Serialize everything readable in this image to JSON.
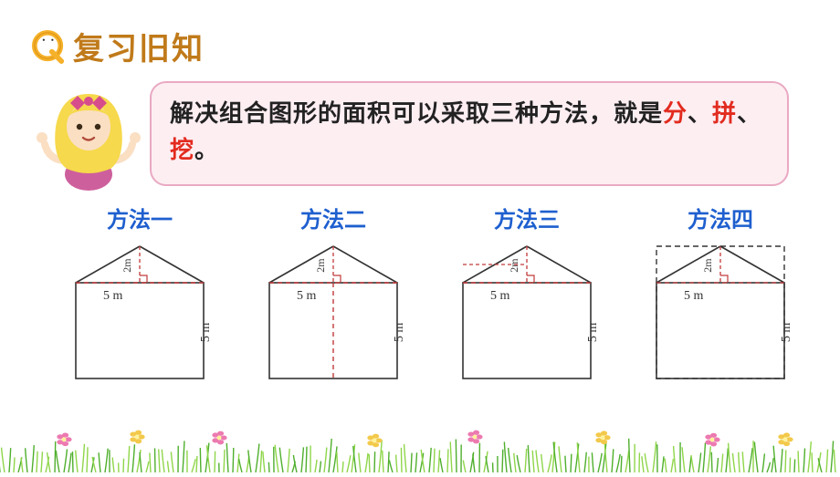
{
  "colors": {
    "title": "#c07a1a",
    "q_body": "#f6b12a",
    "q_outline": "#d98f12",
    "q_eye": "#ffffff",
    "bubble_border": "#e9a9c2",
    "bubble_fill": "#fdeef2",
    "text_black": "#222222",
    "highlight_red": "#e22b1f",
    "method_label": "#1e5fcf",
    "shape_line": "#333333",
    "dashed_red": "#c23a3a",
    "girl_hair": "#f6d94c",
    "girl_skin": "#fbdfc3",
    "girl_dress": "#ce5f9d",
    "girl_bow": "#d74d8c",
    "flower_pink": "#ec7ab0",
    "flower_yellow": "#f3c94b",
    "grass_light": "#8fd64a",
    "grass_dark": "#4faf2d"
  },
  "header": {
    "title": "复习旧知"
  },
  "bubble": {
    "prefix": "解决组合图形的面积可以采取三种方法，就是",
    "hl1": "分",
    "sep1": "、",
    "hl2": "拼",
    "sep2": "、",
    "hl3": "挖",
    "suffix": "。"
  },
  "methods": {
    "labels": [
      "方法一",
      "方法二",
      "方法三",
      "方法四"
    ],
    "label_fontsize": 24,
    "label_color": "#1e5fcf",
    "width_label": "5 m",
    "height_label": "5 m",
    "roof_label": "2m",
    "line_color": "#333333",
    "dashed_color": "#c23a3a",
    "shape": {
      "base_w": 140,
      "base_h": 105,
      "roof_h": 40
    }
  }
}
